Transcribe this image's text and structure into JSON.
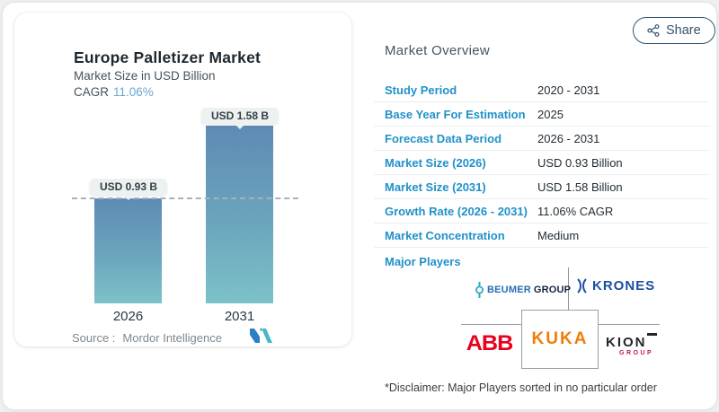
{
  "share": {
    "label": "Share"
  },
  "chart_card": {
    "title": "Europe Palletizer Market",
    "subtitle": "Market Size in USD Billion",
    "cagr_label": "CAGR",
    "cagr_value": "11.06%",
    "source_label": "Source :",
    "source_name": "Mordor Intelligence"
  },
  "chart_data": {
    "type": "bar",
    "title": "Europe Palletizer Market",
    "subtitle": "Market Size in USD Billion",
    "cagr": "11.06%",
    "categories": [
      "2026",
      "2031"
    ],
    "values": [
      0.93,
      1.58
    ],
    "bar_labels": [
      "USD 0.93 B",
      "USD 1.58 B"
    ],
    "unit": "USD Billion",
    "ylim": [
      0,
      1.58
    ],
    "reference_line": 0.93,
    "legend": "none",
    "grid": "off",
    "colors": {
      "bar_top": "#5e8bb4",
      "bar_bottom": "#7cc2c9",
      "reference_dash": "#a4b3bc"
    }
  },
  "overview": {
    "title": "Market Overview",
    "rows": [
      {
        "label": "Study Period",
        "value": "2020 - 2031"
      },
      {
        "label": "Base Year For Estimation",
        "value": "2025"
      },
      {
        "label": "Forecast Data Period",
        "value": "2026 - 2031"
      },
      {
        "label": "Market Size (2026)",
        "value": "USD 0.93 Billion"
      },
      {
        "label": "Market Size (2031)",
        "value": "USD 1.58 Billion"
      },
      {
        "label": "Growth Rate (2026 - 2031)",
        "value": "11.06% CAGR"
      },
      {
        "label": "Market Concentration",
        "value": "Medium"
      }
    ],
    "major_players_label": "Major Players",
    "players": [
      "BEUMER GROUP",
      "KRONES",
      "ABB",
      "KUKA",
      "KION GROUP"
    ],
    "logos": {
      "beumer_text1": "BEUMER",
      "beumer_text2": "GROUP",
      "krones_text": "KRONES",
      "abb_text": "ABB",
      "kuka_text": "KUKA",
      "kion_text": "KION",
      "kion_sub": "GROUP"
    },
    "disclaimer": "*Disclaimer: Major Players sorted in no particular order"
  },
  "colors": {
    "accent_label_blue": "#2191c9",
    "cagr_value_blue": "#69a6cd",
    "share_slate": "#33536f"
  }
}
